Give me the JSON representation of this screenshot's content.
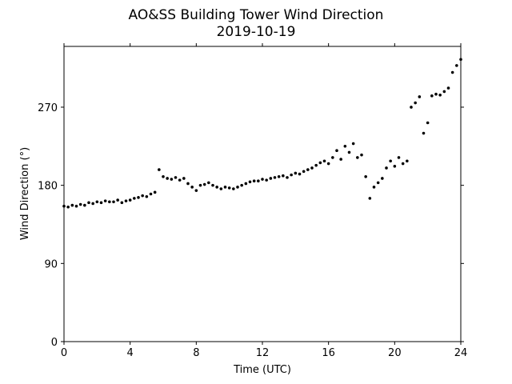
{
  "chart_data": {
    "type": "scatter",
    "title": "AO&SS Building Tower Wind Direction",
    "subtitle": "2019-10-19",
    "x_label": "Time (UTC)",
    "y_label": "Wind Direction (°)",
    "xlim": [
      0,
      24
    ],
    "ylim": [
      0,
      340
    ],
    "xticks": [
      0,
      4,
      8,
      12,
      16,
      20,
      24
    ],
    "yticks": [
      0,
      90,
      180,
      270
    ],
    "color": "#000000",
    "x": [
      0,
      0.25,
      0.5,
      0.75,
      1,
      1.25,
      1.5,
      1.75,
      2,
      2.25,
      2.5,
      2.75,
      3,
      3.25,
      3.5,
      3.75,
      4,
      4.25,
      4.5,
      4.75,
      5,
      5.25,
      5.5,
      5.75,
      6,
      6.25,
      6.5,
      6.75,
      7,
      7.25,
      7.5,
      7.75,
      8,
      8.25,
      8.5,
      8.75,
      9,
      9.25,
      9.5,
      9.75,
      10,
      10.25,
      10.5,
      10.75,
      11,
      11.25,
      11.5,
      11.75,
      12,
      12.25,
      12.5,
      12.75,
      13,
      13.25,
      13.5,
      13.75,
      14,
      14.25,
      14.5,
      14.75,
      15,
      15.25,
      15.5,
      15.75,
      16,
      16.25,
      16.5,
      16.75,
      17,
      17.25,
      17.5,
      17.75,
      18,
      18.25,
      18.5,
      18.75,
      19,
      19.25,
      19.5,
      19.75,
      20,
      20.25,
      20.5,
      20.75,
      21,
      21.25,
      21.5,
      21.75,
      22,
      22.25,
      22.5,
      22.75,
      23,
      23.25,
      23.5,
      23.75,
      24
    ],
    "values": [
      156,
      155,
      157,
      156,
      158,
      157,
      160,
      159,
      161,
      160,
      162,
      161,
      161,
      163,
      160,
      162,
      163,
      165,
      166,
      168,
      167,
      170,
      172,
      198,
      190,
      188,
      187,
      189,
      186,
      188,
      182,
      178,
      174,
      180,
      181,
      183,
      180,
      178,
      176,
      178,
      177,
      176,
      178,
      180,
      182,
      184,
      185,
      185,
      187,
      186,
      188,
      189,
      190,
      191,
      189,
      192,
      194,
      193,
      196,
      198,
      200,
      203,
      206,
      208,
      205,
      212,
      220,
      210,
      225,
      218,
      228,
      212,
      215,
      190,
      165,
      178,
      183,
      188,
      200,
      208,
      202,
      212,
      205,
      208,
      270,
      275,
      282,
      240,
      252,
      283,
      285,
      284,
      288,
      292,
      310,
      318,
      325
    ]
  }
}
